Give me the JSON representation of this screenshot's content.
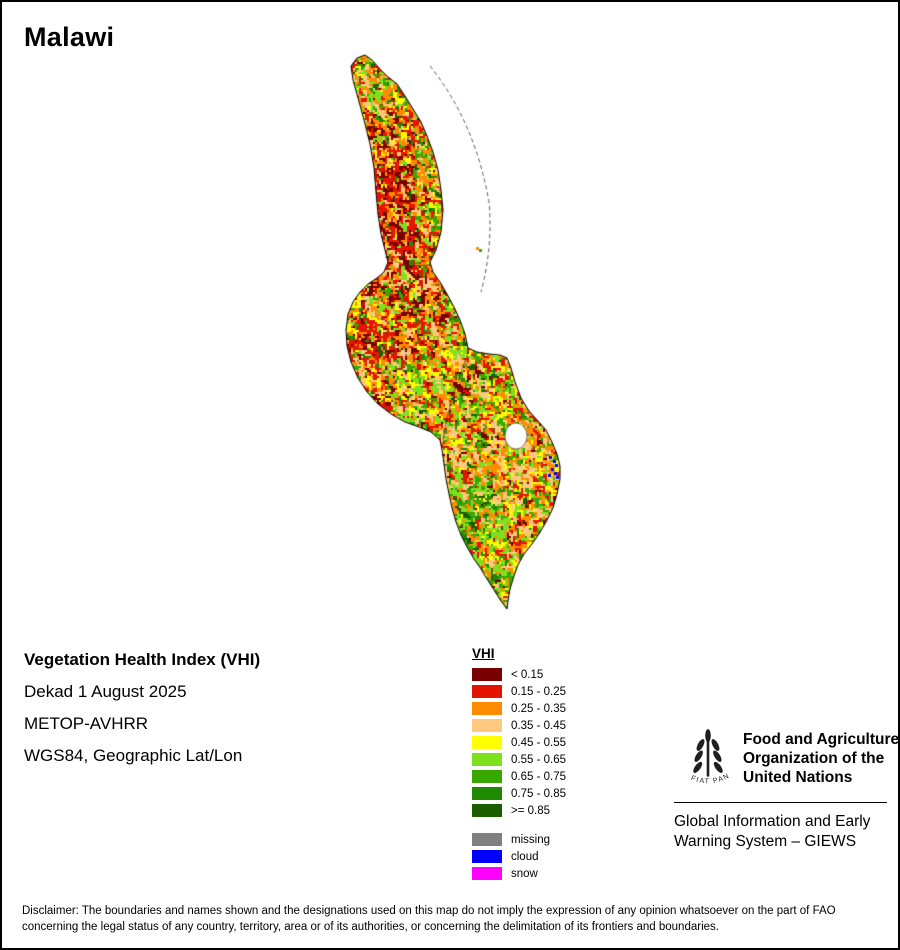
{
  "page": {
    "title": "Malawi"
  },
  "metadata": {
    "index_name": "Vegetation Health Index (VHI)",
    "dekad": "Dekad 1 August 2025",
    "sensor": "METOP-AVHRR",
    "projection": "WGS84, Geographic Lat/Lon"
  },
  "legend": {
    "title": "VHI",
    "classes": [
      {
        "label": "< 0.15",
        "color": "#780000"
      },
      {
        "label": "0.15 - 0.25",
        "color": "#E31400"
      },
      {
        "label": "0.25 - 0.35",
        "color": "#FF8B00"
      },
      {
        "label": "0.35 - 0.45",
        "color": "#FFC87F"
      },
      {
        "label": "0.45 - 0.55",
        "color": "#FFFF00"
      },
      {
        "label": "0.55 - 0.65",
        "color": "#7FE01E"
      },
      {
        "label": "0.65 - 0.75",
        "color": "#38A800"
      },
      {
        "label": "0.75 - 0.85",
        "color": "#1E8A00"
      },
      {
        "label": ">= 0.85",
        "color": "#1A5E00"
      }
    ],
    "extras": [
      {
        "label": "missing",
        "color": "#808080"
      },
      {
        "label": "cloud",
        "color": "#0000FF"
      },
      {
        "label": "snow",
        "color": "#FF00FF"
      }
    ]
  },
  "footer": {
    "fao_name": "Food and Agriculture Organization of the United Nations",
    "fao_motto": "FIAT PANIS",
    "giews": "Global Information and Early Warning System – GIEWS",
    "disclaimer": "Disclaimer: The boundaries and names shown and the designations used on this map do not imply the expression of any opinion whatsoever on the part of FAO concerning the legal status of any country, territory, area or of its authorities, or concerning the delimitation of its frontiers and boundaries."
  }
}
